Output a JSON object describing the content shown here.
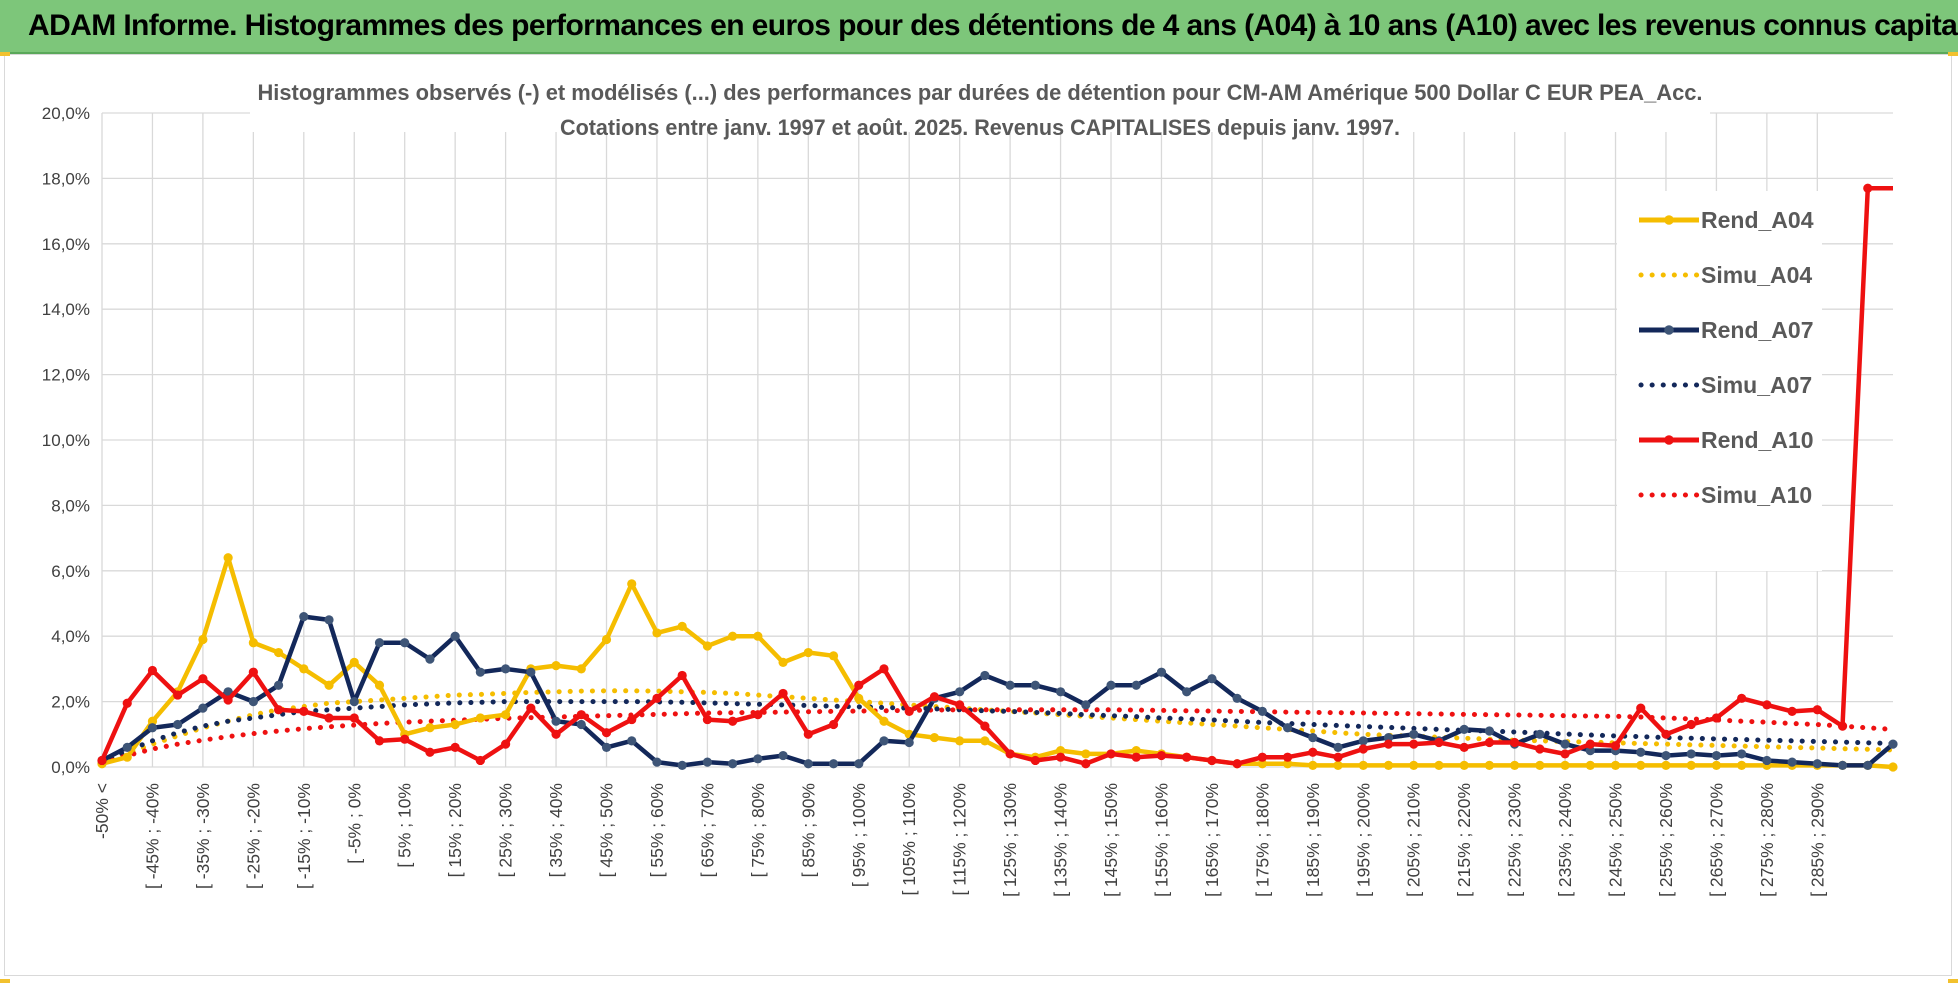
{
  "banner": {
    "title": "ADAM Informe. Histogrammes des performances en euros pour des détentions de 4 ans (A04) à 10 ans (A10) avec les revenus connus capitalisés"
  },
  "colors": {
    "banner_bg": "#7dc67a",
    "A04": "#f5bd00",
    "A07": "#13285a",
    "A07_marker": "#3e5577",
    "A10": "#ee1111",
    "grid": "#d9d9d9"
  },
  "chart_data": {
    "type": "line",
    "title_line1": "Histogrammes observés (-) et modélisés (...) des performances par durées de détention pour CM-AM Amérique 500 Dollar C EUR PEA_Acc.",
    "title_line2": "Cotations entre janv. 1997 et août. 2025. Revenus CAPITALISES depuis janv. 1997.",
    "ylim": [
      0,
      20
    ],
    "yticks": [
      0,
      2,
      4,
      6,
      8,
      10,
      12,
      14,
      16,
      18,
      20
    ],
    "ytick_labels": [
      "0,0%",
      "2,0%",
      "4,0%",
      "6,0%",
      "8,0%",
      "10,0%",
      "12,0%",
      "14,0%",
      "16,0%",
      "18,0%",
      "20,0%"
    ],
    "grid": true,
    "legend_position": "right",
    "category_labels": [
      "-50% <",
      "[ -45% ; -40%",
      "[ -35% ; -30%",
      "[ -25% ; -20%",
      "[ -15% ; -10%",
      "[ -5% ; 0%",
      "[ 5% ; 10%",
      "[ 15% ; 20%",
      "[ 25% ; 30%",
      "[ 35% ; 40%",
      "[ 45% ; 50%",
      "[ 55% ; 60%",
      "[ 65% ; 70%",
      "[ 75% ; 80%",
      "[ 85% ; 90%",
      "[ 95% ; 100%",
      "[ 105% ; 110%",
      "[ 115% ; 120%",
      "[ 125% ; 130%",
      "[ 135% ; 140%",
      "[ 145% ; 150%",
      "[ 155% ; 160%",
      "[ 165% ; 170%",
      "[ 175% ; 180%",
      "[ 185% ; 190%",
      "[ 195% ; 200%",
      "[ 205% ; 210%",
      "[ 215% ; 220%",
      "[ 225% ; 230%",
      "[ 235% ; 240%",
      "[ 245% ; 250%",
      "[ 255% ; 260%",
      "[ 265% ; 270%",
      "[ 275% ; 280%",
      "[ 285% ; 290%"
    ],
    "series": [
      {
        "name": "Rend_A04",
        "style": "solid",
        "color": "#f5bd00",
        "values": [
          0.1,
          0.3,
          1.4,
          2.3,
          3.9,
          6.4,
          3.8,
          3.5,
          3.0,
          2.5,
          3.2,
          2.5,
          1.0,
          1.2,
          1.3,
          1.5,
          1.6,
          3.0,
          3.1,
          3.0,
          3.9,
          5.6,
          4.1,
          4.3,
          3.7,
          4.0,
          4.0,
          3.2,
          3.5,
          3.4,
          2.1,
          1.4,
          1.0,
          0.9,
          0.8,
          0.8,
          0.4,
          0.3,
          0.5,
          0.4,
          0.4,
          0.5,
          0.4,
          0.3,
          0.2,
          0.1,
          0.1,
          0.1,
          0.05,
          0.05,
          0.05,
          0.05,
          0.05,
          0.05,
          0.05,
          0.05,
          0.05,
          0.05,
          0.05,
          0.05,
          0.05,
          0.05,
          0.05,
          0.05,
          0.05,
          0.05,
          0.05,
          0.05,
          0.05,
          0.05,
          0.05,
          0.0
        ]
      },
      {
        "name": "Simu_A04",
        "style": "dotted",
        "color": "#f5bd00",
        "values": [
          0.1,
          0.4,
          0.7,
          0.95,
          1.2,
          1.4,
          1.6,
          1.75,
          1.85,
          1.95,
          2.0,
          2.05,
          2.1,
          2.15,
          2.2,
          2.22,
          2.25,
          2.28,
          2.3,
          2.32,
          2.33,
          2.33,
          2.32,
          2.3,
          2.28,
          2.25,
          2.2,
          2.15,
          2.1,
          2.05,
          2.0,
          1.95,
          1.9,
          1.85,
          1.8,
          1.75,
          1.7,
          1.65,
          1.6,
          1.55,
          1.5,
          1.45,
          1.4,
          1.35,
          1.3,
          1.25,
          1.2,
          1.15,
          1.1,
          1.05,
          1.0,
          0.97,
          0.94,
          0.91,
          0.88,
          0.85,
          0.82,
          0.8,
          0.78,
          0.76,
          0.74,
          0.72,
          0.7,
          0.68,
          0.66,
          0.64,
          0.62,
          0.6,
          0.58,
          0.56,
          0.54,
          0.52
        ]
      },
      {
        "name": "Rend_A07",
        "style": "solid",
        "color": "#13285a",
        "values": [
          0.2,
          0.6,
          1.2,
          1.3,
          1.8,
          2.3,
          2.0,
          2.5,
          4.6,
          4.5,
          2.0,
          3.8,
          3.8,
          3.3,
          4.0,
          2.9,
          3.0,
          2.9,
          1.4,
          1.3,
          0.6,
          0.8,
          0.15,
          0.05,
          0.15,
          0.1,
          0.25,
          0.35,
          0.1,
          0.1,
          0.1,
          0.8,
          0.75,
          2.1,
          2.3,
          2.8,
          2.5,
          2.5,
          2.3,
          1.9,
          2.5,
          2.5,
          2.9,
          2.3,
          2.7,
          2.1,
          1.7,
          1.2,
          0.9,
          0.6,
          0.8,
          0.9,
          1.0,
          0.8,
          1.15,
          1.1,
          0.7,
          1.0,
          0.7,
          0.5,
          0.5,
          0.45,
          0.35,
          0.4,
          0.35,
          0.4,
          0.2,
          0.15,
          0.1,
          0.05,
          0.05,
          0.7
        ]
      },
      {
        "name": "Simu_A07",
        "style": "dotted",
        "color": "#13285a",
        "values": [
          0.1,
          0.5,
          0.8,
          1.05,
          1.25,
          1.4,
          1.5,
          1.6,
          1.7,
          1.75,
          1.8,
          1.85,
          1.9,
          1.93,
          1.96,
          1.98,
          2.0,
          2.0,
          2.0,
          2.0,
          2.0,
          2.0,
          1.99,
          1.98,
          1.96,
          1.94,
          1.92,
          1.9,
          1.88,
          1.86,
          1.84,
          1.82,
          1.8,
          1.78,
          1.75,
          1.72,
          1.7,
          1.67,
          1.64,
          1.6,
          1.57,
          1.54,
          1.5,
          1.47,
          1.44,
          1.4,
          1.36,
          1.33,
          1.3,
          1.27,
          1.24,
          1.21,
          1.18,
          1.15,
          1.12,
          1.1,
          1.07,
          1.04,
          1.01,
          0.98,
          0.95,
          0.93,
          0.9,
          0.88,
          0.86,
          0.84,
          0.82,
          0.8,
          0.78,
          0.76,
          0.74,
          0.72
        ]
      },
      {
        "name": "Rend_A10",
        "style": "solid",
        "color": "#ee1111",
        "values": [
          0.2,
          1.95,
          2.95,
          2.2,
          2.7,
          2.05,
          2.9,
          1.75,
          1.7,
          1.5,
          1.5,
          0.8,
          0.85,
          0.45,
          0.6,
          0.2,
          0.7,
          1.8,
          1.0,
          1.6,
          1.05,
          1.45,
          2.1,
          2.8,
          1.45,
          1.4,
          1.6,
          2.25,
          1.0,
          1.3,
          2.5,
          3.0,
          1.7,
          2.15,
          1.9,
          1.25,
          0.4,
          0.2,
          0.3,
          0.1,
          0.4,
          0.3,
          0.35,
          0.3,
          0.2,
          0.1,
          0.3,
          0.3,
          0.45,
          0.3,
          0.55,
          0.7,
          0.7,
          0.75,
          0.6,
          0.75,
          0.75,
          0.55,
          0.4,
          0.7,
          0.65,
          1.8,
          1.0,
          1.3,
          1.5,
          2.1,
          1.9,
          1.7,
          1.75,
          1.25,
          17.7,
          17.7
        ]
      },
      {
        "name": "Simu_A10",
        "style": "dotted",
        "color": "#ee1111",
        "values": [
          0.1,
          0.35,
          0.55,
          0.7,
          0.82,
          0.93,
          1.02,
          1.1,
          1.17,
          1.23,
          1.28,
          1.33,
          1.37,
          1.4,
          1.43,
          1.46,
          1.49,
          1.51,
          1.53,
          1.55,
          1.57,
          1.59,
          1.61,
          1.63,
          1.65,
          1.66,
          1.67,
          1.68,
          1.69,
          1.7,
          1.71,
          1.72,
          1.73,
          1.74,
          1.75,
          1.75,
          1.75,
          1.75,
          1.75,
          1.75,
          1.75,
          1.74,
          1.73,
          1.72,
          1.71,
          1.7,
          1.69,
          1.68,
          1.67,
          1.66,
          1.65,
          1.64,
          1.63,
          1.62,
          1.61,
          1.6,
          1.59,
          1.58,
          1.57,
          1.56,
          1.55,
          1.53,
          1.5,
          1.47,
          1.44,
          1.4,
          1.37,
          1.33,
          1.3,
          1.25,
          1.2,
          1.15
        ]
      }
    ]
  }
}
